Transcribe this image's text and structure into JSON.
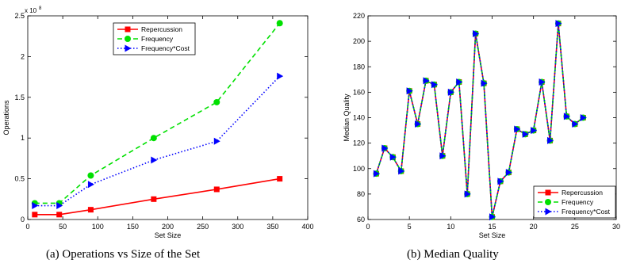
{
  "captions": {
    "left": "(a) Operations vs Size of the Set",
    "right": "(b) Median Quality"
  },
  "colors": {
    "repercussion": "#ff0000",
    "frequency": "#00e000",
    "frequency_cost": "#0000ff"
  },
  "chart_data": [
    {
      "type": "line",
      "title": "",
      "xlabel": "Set Size",
      "ylabel": "Operations",
      "y_multiplier": "x 10",
      "y_multiplier_exp": "8",
      "xlim": [
        0,
        400
      ],
      "ylim": [
        0,
        2.5
      ],
      "xticks": [
        0,
        50,
        100,
        150,
        200,
        250,
        300,
        350,
        400
      ],
      "yticks": [
        0,
        0.5,
        1,
        1.5,
        2,
        2.5
      ],
      "grid": false,
      "legend": "top-center",
      "x": [
        10,
        45,
        90,
        180,
        270,
        360
      ],
      "series": [
        {
          "name": "Repercussion",
          "style": "solid",
          "marker": "square",
          "values": [
            0.06,
            0.06,
            0.12,
            0.25,
            0.37,
            0.5
          ]
        },
        {
          "name": "Frequency",
          "style": "dashed",
          "marker": "circle",
          "values": [
            0.2,
            0.2,
            0.54,
            1.0,
            1.44,
            2.41
          ]
        },
        {
          "name": "Frequency*Cost",
          "style": "dotted",
          "marker": "triangle-right",
          "values": [
            0.17,
            0.17,
            0.43,
            0.73,
            0.96,
            1.76
          ]
        }
      ]
    },
    {
      "type": "line",
      "title": "",
      "xlabel": "Set Size",
      "ylabel": "Median Quality",
      "xlim": [
        0,
        30
      ],
      "ylim": [
        60,
        220
      ],
      "xticks": [
        0,
        5,
        10,
        15,
        20,
        25,
        30
      ],
      "yticks": [
        60,
        80,
        100,
        120,
        140,
        160,
        180,
        200,
        220
      ],
      "grid": false,
      "legend": "bottom-right",
      "x": [
        1,
        2,
        3,
        4,
        5,
        6,
        7,
        8,
        9,
        10,
        11,
        12,
        13,
        14,
        15,
        16,
        17,
        18,
        19,
        20,
        21,
        22,
        23,
        24,
        25,
        26
      ],
      "series": [
        {
          "name": "Repercussion",
          "style": "solid",
          "marker": "square",
          "values": [
            96,
            116,
            109,
            98,
            161,
            135,
            169,
            166,
            110,
            160,
            168,
            80,
            206,
            167,
            62,
            90,
            97,
            131,
            127,
            130,
            168,
            122,
            214,
            141,
            135,
            140
          ]
        },
        {
          "name": "Frequency",
          "style": "dashed",
          "marker": "circle",
          "values": [
            96,
            116,
            109,
            98,
            161,
            135,
            169,
            166,
            110,
            160,
            168,
            80,
            206,
            167,
            62,
            90,
            97,
            131,
            127,
            130,
            168,
            122,
            214,
            141,
            135,
            140
          ]
        },
        {
          "name": "Frequency*Cost",
          "style": "dotted",
          "marker": "triangle-right",
          "values": [
            96,
            116,
            109,
            98,
            161,
            135,
            169,
            166,
            110,
            160,
            168,
            80,
            206,
            167,
            62,
            90,
            97,
            131,
            127,
            130,
            168,
            122,
            214,
            141,
            135,
            140
          ]
        }
      ]
    }
  ]
}
